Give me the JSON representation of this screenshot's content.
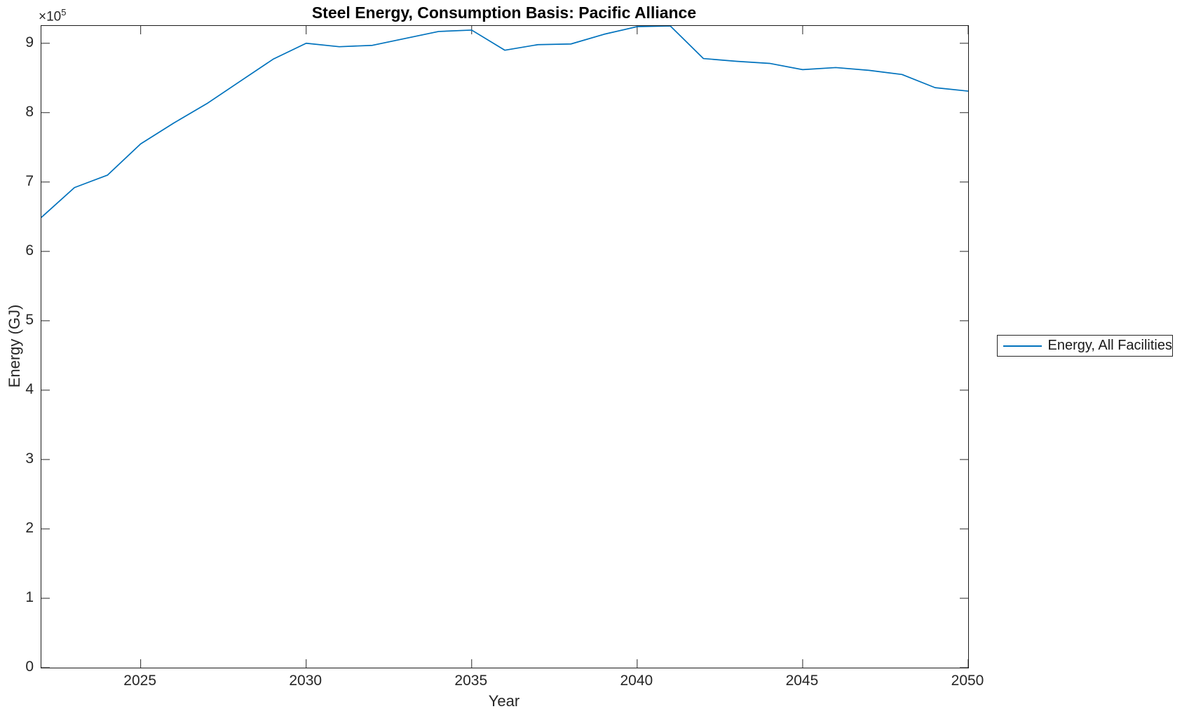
{
  "figure": {
    "title": "Steel Energy, Consumption Basis: Pacific Alliance"
  },
  "axes": {
    "x": {
      "label": "Year",
      "ticks": [
        2025,
        2030,
        2035,
        2040,
        2045,
        2050
      ],
      "tick_labels": [
        "2025",
        "2030",
        "2035",
        "2040",
        "2045",
        "2050"
      ]
    },
    "y": {
      "label": "Energy (GJ)",
      "ticks": [
        0,
        100000,
        200000,
        300000,
        400000,
        500000,
        600000,
        700000,
        800000,
        900000
      ],
      "tick_labels": [
        "0",
        "1",
        "2",
        "3",
        "4",
        "5",
        "6",
        "7",
        "8",
        "9"
      ],
      "multiplier_base": "×10",
      "multiplier_exp": "5"
    }
  },
  "legend": {
    "position": "right-outside",
    "entries": [
      {
        "label": "Energy, All Facilities",
        "color": "#0072bd"
      }
    ]
  },
  "colors": {
    "line": "#0072bd",
    "axis": "#262626",
    "title": "#000000",
    "background": "#ffffff"
  },
  "chart_data": {
    "type": "line",
    "title": "Steel Energy, Consumption Basis: Pacific Alliance",
    "xlabel": "Year",
    "ylabel": "Energy (GJ)",
    "xlim": [
      2022,
      2050
    ],
    "ylim": [
      0,
      925000
    ],
    "grid": false,
    "legend_position": "right-outside",
    "series": [
      {
        "name": "Energy, All Facilities",
        "color": "#0072bd",
        "x": [
          2022,
          2023,
          2024,
          2025,
          2026,
          2027,
          2028,
          2029,
          2030,
          2031,
          2032,
          2033,
          2034,
          2035,
          2036,
          2037,
          2038,
          2039,
          2040,
          2041,
          2042,
          2043,
          2044,
          2045,
          2046,
          2047,
          2048,
          2049,
          2050
        ],
        "y": [
          649000,
          692000,
          710000,
          755000,
          785000,
          813000,
          845000,
          877000,
          900000,
          895000,
          897000,
          907000,
          917000,
          919000,
          890000,
          898000,
          899000,
          913000,
          924000,
          925000,
          878000,
          874000,
          871000,
          862000,
          865000,
          861000,
          855000,
          836000,
          831000
        ]
      }
    ]
  }
}
